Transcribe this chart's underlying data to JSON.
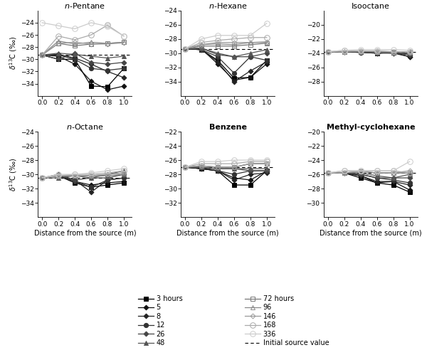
{
  "x": [
    0,
    0.2,
    0.4,
    0.6,
    0.8,
    1.0
  ],
  "titles_order": [
    "n-Pentane",
    "n-Hexane",
    "Isooctane",
    "n-Octane",
    "Benzene",
    "Methyl-cyclohexane"
  ],
  "ylims": {
    "n-Pentane": [
      -36,
      -22
    ],
    "n-Hexane": [
      -36,
      -24
    ],
    "Isooctane": [
      -30,
      -18
    ],
    "n-Octane": [
      -36,
      -24
    ],
    "Benzene": [
      -34,
      -22
    ],
    "Methyl-cyclohexane": [
      -32,
      -20
    ]
  },
  "yticks": {
    "n-Pentane": [
      -34,
      -32,
      -30,
      -28,
      -26,
      -24
    ],
    "n-Hexane": [
      -34,
      -32,
      -30,
      -28,
      -26,
      -24
    ],
    "Isooctane": [
      -28,
      -26,
      -24,
      -22,
      -20
    ],
    "n-Octane": [
      -34,
      -32,
      -30,
      -28,
      -26,
      -24
    ],
    "Benzene": [
      -32,
      -30,
      -28,
      -26,
      -24,
      -22
    ],
    "Methyl-cyclohexane": [
      -30,
      -28,
      -26,
      -24,
      -22,
      -20
    ]
  },
  "dashed_lines": {
    "n-Pentane": -29.3,
    "n-Hexane": -29.4,
    "Isooctane": -23.8,
    "n-Octane": -30.5,
    "Benzene": -27.0,
    "Methyl-cyclohexane": -25.8
  },
  "series_labels": [
    "3 hours",
    "5",
    "8",
    "12",
    "26",
    "48",
    "72 hours",
    "96",
    "146",
    "168",
    "336"
  ],
  "series_styles": [
    {
      "marker": "s",
      "fillstyle": "full",
      "color": "#000000",
      "ms": 4.5,
      "lw": 0.9
    },
    {
      "marker": "D",
      "fillstyle": "full",
      "color": "#111111",
      "ms": 3.5,
      "lw": 0.9
    },
    {
      "marker": "D",
      "fillstyle": "full",
      "color": "#222222",
      "ms": 3.5,
      "lw": 0.9
    },
    {
      "marker": "o",
      "fillstyle": "full",
      "color": "#333333",
      "ms": 4.5,
      "lw": 0.9
    },
    {
      "marker": "D",
      "fillstyle": "full",
      "color": "#444444",
      "ms": 3.5,
      "lw": 0.9
    },
    {
      "marker": "^",
      "fillstyle": "full",
      "color": "#555555",
      "ms": 4.5,
      "lw": 0.9
    },
    {
      "marker": "s",
      "fillstyle": "none",
      "color": "#777777",
      "ms": 4.5,
      "lw": 0.9
    },
    {
      "marker": "^",
      "fillstyle": "none",
      "color": "#888888",
      "ms": 4.5,
      "lw": 0.9
    },
    {
      "marker": "D",
      "fillstyle": "none",
      "color": "#999999",
      "ms": 3.5,
      "lw": 0.9
    },
    {
      "marker": "o",
      "fillstyle": "none",
      "color": "#aaaaaa",
      "ms": 5.5,
      "lw": 0.9
    },
    {
      "marker": "o",
      "fillstyle": "none",
      "color": "#cccccc",
      "ms": 5.5,
      "lw": 0.9
    }
  ],
  "plot_data": {
    "n-Pentane": [
      [
        -29.3,
        -30.0,
        -30.0,
        -34.4,
        -34.5,
        -31.5
      ],
      [
        -29.3,
        -29.5,
        -30.8,
        -33.6,
        -35.0,
        -34.4
      ],
      [
        -29.3,
        -29.2,
        -29.8,
        -30.8,
        -32.0,
        -33.0
      ],
      [
        -29.3,
        -29.3,
        -30.0,
        -31.5,
        -31.8,
        -31.5
      ],
      [
        -29.3,
        -30.0,
        -29.0,
        -30.5,
        -30.8,
        -30.5
      ],
      [
        -29.3,
        -29.0,
        -29.2,
        -29.5,
        -29.8,
        -29.5
      ],
      [
        -29.3,
        -27.4,
        -27.8,
        -27.5,
        -27.4,
        -27.2
      ],
      [
        -29.3,
        -27.0,
        -27.5,
        -27.2,
        -27.4,
        -27.2
      ],
      [
        -29.3,
        -27.4,
        -27.2,
        -27.5,
        -27.5,
        -27.3
      ],
      [
        -29.3,
        -26.2,
        -26.8,
        -26.0,
        -24.4,
        -26.2
      ],
      [
        -24.0,
        -24.5,
        -25.0,
        -24.0,
        -24.6,
        -26.2
      ]
    ],
    "n-Hexane": [
      [
        -29.4,
        -29.5,
        -31.0,
        -33.5,
        -33.4,
        -31.0
      ],
      [
        -29.4,
        -29.4,
        -31.5,
        -33.8,
        -33.4,
        -31.5
      ],
      [
        -29.4,
        -29.5,
        -31.2,
        -34.0,
        -32.5,
        -31.2
      ],
      [
        -29.4,
        -29.5,
        -30.5,
        -32.8,
        -30.5,
        -31.0
      ],
      [
        -29.4,
        -29.3,
        -30.2,
        -30.5,
        -30.5,
        -30.0
      ],
      [
        -29.4,
        -29.3,
        -30.0,
        -30.5,
        -30.0,
        -29.5
      ],
      [
        -29.4,
        -29.0,
        -29.0,
        -29.0,
        -28.8,
        -28.6
      ],
      [
        -29.4,
        -28.8,
        -28.7,
        -28.8,
        -28.5,
        -28.5
      ],
      [
        -29.4,
        -28.8,
        -28.5,
        -28.5,
        -28.5,
        -28.4
      ],
      [
        -29.4,
        -28.5,
        -28.2,
        -28.0,
        -27.8,
        -27.8
      ],
      [
        -29.4,
        -28.0,
        -27.5,
        -27.5,
        -27.5,
        -25.8
      ]
    ],
    "Isooctane": [
      [
        -23.8,
        -23.8,
        -23.8,
        -24.0,
        -23.9,
        -24.2
      ],
      [
        -23.8,
        -23.8,
        -23.8,
        -24.0,
        -23.9,
        -24.5
      ],
      [
        -23.8,
        -23.8,
        -23.9,
        -24.0,
        -24.0,
        -24.5
      ],
      [
        -23.8,
        -23.8,
        -23.9,
        -24.0,
        -23.9,
        -24.2
      ],
      [
        -23.8,
        -23.8,
        -23.8,
        -23.9,
        -24.0,
        -24.2
      ],
      [
        -23.8,
        -23.8,
        -23.8,
        -23.9,
        -23.9,
        -24.0
      ],
      [
        -23.8,
        -23.8,
        -23.7,
        -23.8,
        -23.8,
        -23.8
      ],
      [
        -23.8,
        -23.8,
        -23.7,
        -23.8,
        -23.8,
        -23.8
      ],
      [
        -23.8,
        -23.8,
        -23.7,
        -23.7,
        -23.8,
        -23.8
      ],
      [
        -23.8,
        -23.6,
        -23.7,
        -23.7,
        -23.8,
        -23.8
      ],
      [
        -23.8,
        -23.6,
        -23.5,
        -23.5,
        -23.5,
        -23.6
      ]
    ],
    "n-Octane": [
      [
        -30.5,
        -30.2,
        -31.2,
        -31.8,
        -31.5,
        -31.2
      ],
      [
        -30.5,
        -30.2,
        -31.0,
        -31.5,
        -31.2,
        -31.0
      ],
      [
        -30.5,
        -30.2,
        -30.8,
        -32.5,
        -30.8,
        -30.5
      ],
      [
        -30.5,
        -30.2,
        -31.0,
        -31.8,
        -30.8,
        -30.5
      ],
      [
        -30.5,
        -30.0,
        -30.8,
        -30.5,
        -30.5,
        -30.0
      ],
      [
        -30.5,
        -30.5,
        -30.2,
        -30.5,
        -30.0,
        -29.5
      ],
      [
        -30.5,
        -30.2,
        -30.2,
        -30.2,
        -30.2,
        -30.0
      ],
      [
        -30.5,
        -30.2,
        -30.2,
        -30.2,
        -30.0,
        -29.8
      ],
      [
        -30.5,
        -30.2,
        -30.2,
        -30.2,
        -30.0,
        -29.8
      ],
      [
        -30.5,
        -30.2,
        -30.0,
        -30.0,
        -29.8,
        -29.5
      ],
      [
        -30.5,
        -30.0,
        -30.0,
        -29.8,
        -29.5,
        -29.2
      ]
    ],
    "Benzene": [
      [
        -27.0,
        -27.2,
        -27.5,
        -29.5,
        -29.5,
        -27.5
      ],
      [
        -27.0,
        -27.2,
        -27.5,
        -28.5,
        -28.8,
        -27.5
      ],
      [
        -27.0,
        -27.2,
        -27.5,
        -28.8,
        -28.0,
        -27.8
      ],
      [
        -27.0,
        -27.0,
        -27.5,
        -28.0,
        -27.5,
        -27.5
      ],
      [
        -27.0,
        -27.0,
        -27.2,
        -27.2,
        -27.5,
        -27.5
      ],
      [
        -27.0,
        -27.0,
        -27.2,
        -27.2,
        -27.2,
        -27.2
      ],
      [
        -27.0,
        -26.8,
        -27.0,
        -27.0,
        -26.5,
        -26.5
      ],
      [
        -27.0,
        -26.8,
        -27.0,
        -27.0,
        -26.5,
        -26.5
      ],
      [
        -27.0,
        -26.8,
        -27.0,
        -27.0,
        -26.5,
        -26.5
      ],
      [
        -27.0,
        -26.5,
        -26.5,
        -26.5,
        -26.2,
        -26.2
      ],
      [
        -27.0,
        -26.2,
        -26.2,
        -26.0,
        -26.0,
        -26.0
      ]
    ],
    "Methyl-cyclohexane": [
      [
        -25.8,
        -25.8,
        -26.5,
        -27.2,
        -27.5,
        -28.5
      ],
      [
        -25.8,
        -25.8,
        -26.2,
        -27.2,
        -27.0,
        -28.2
      ],
      [
        -25.8,
        -25.8,
        -26.2,
        -27.0,
        -27.0,
        -27.5
      ],
      [
        -25.8,
        -25.8,
        -26.0,
        -26.5,
        -26.8,
        -27.2
      ],
      [
        -25.8,
        -25.8,
        -26.0,
        -26.5,
        -26.5,
        -26.5
      ],
      [
        -25.8,
        -25.8,
        -25.8,
        -26.2,
        -26.5,
        -26.0
      ],
      [
        -25.8,
        -25.8,
        -25.6,
        -25.8,
        -25.8,
        -25.8
      ],
      [
        -25.8,
        -25.8,
        -25.6,
        -25.8,
        -25.8,
        -25.8
      ],
      [
        -25.8,
        -25.8,
        -25.6,
        -25.8,
        -25.8,
        -25.5
      ],
      [
        -25.8,
        -25.5,
        -25.5,
        -25.5,
        -25.5,
        -25.8
      ],
      [
        -25.8,
        -25.5,
        -25.5,
        -25.5,
        -25.5,
        -24.2
      ]
    ]
  }
}
